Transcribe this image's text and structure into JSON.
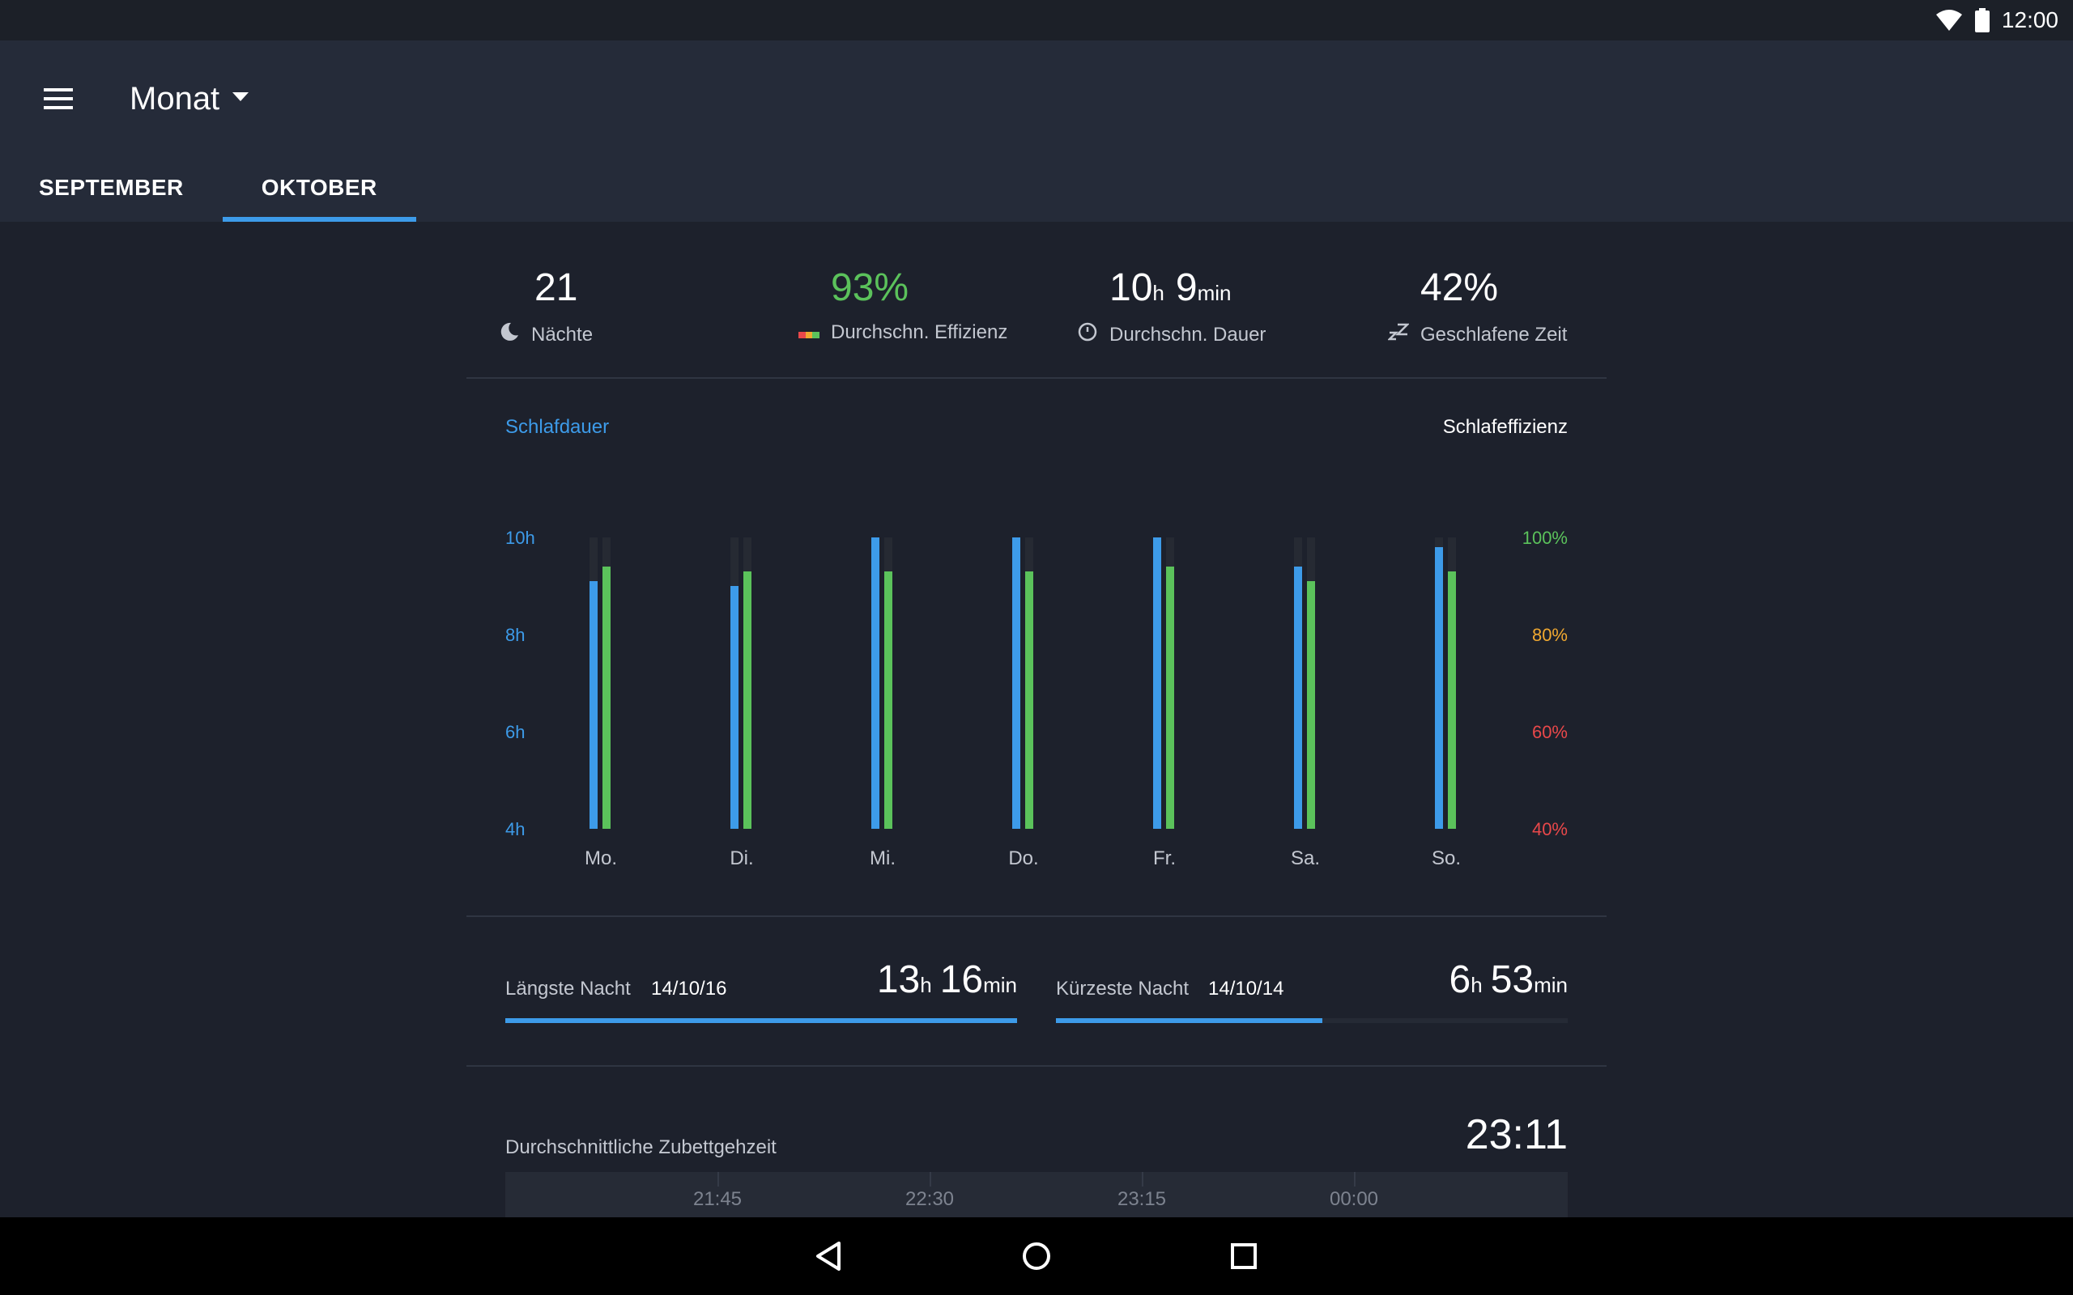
{
  "status_bar": {
    "time": "12:00",
    "icons": [
      "wifi-icon",
      "battery-icon"
    ]
  },
  "header": {
    "period": "Monat",
    "menu_icon": "hamburger-menu-icon",
    "dropdown_icon": "arrow-drop-down-icon"
  },
  "tabs": [
    {
      "label": "SEPTEMBER",
      "active": false
    },
    {
      "label": "OKTOBER",
      "active": true
    }
  ],
  "stats": [
    {
      "value": "21",
      "label": "Nächte",
      "icon": "moon-icon"
    },
    {
      "value": "93%",
      "label": "Durchschn. Effizienz",
      "icon": "efficiency-bar-icon"
    },
    {
      "value_h": "10",
      "unit_h": "h",
      "value_m": "9",
      "unit_m": "min",
      "label": "Durchschn. Dauer",
      "icon": "clock-icon"
    },
    {
      "value": "42%",
      "label": "Geschlafene Zeit",
      "icon": "sleep-zz-icon"
    }
  ],
  "chart_legend": {
    "left": "Schlafdauer",
    "right": "Schlafeffizienz"
  },
  "chart_data": {
    "type": "bar",
    "categories": [
      "Mo.",
      "Di.",
      "Mi.",
      "Do.",
      "Fr.",
      "Sa.",
      "So."
    ],
    "series": [
      {
        "values": [
          9.1,
          9.0,
          10.0,
          10.0,
          10.0,
          9.4,
          9.8
        ],
        "color": "#3d9be9",
        "axis": "left"
      },
      {
        "values": [
          94,
          93,
          93,
          93,
          94,
          91,
          93
        ],
        "color": "#5bc25b",
        "axis": "right"
      }
    ],
    "y_left": {
      "ticks": [
        "10h",
        "8h",
        "6h",
        "4h"
      ],
      "range": [
        4,
        10
      ],
      "color": "#3d9be9"
    },
    "y_right": {
      "ticks": [
        "100%",
        "80%",
        "60%",
        "40%"
      ],
      "range": [
        40,
        100
      ],
      "tick_colors": [
        "#5bc25b",
        "#f0a830",
        "#e9484a",
        "#e9484a"
      ]
    },
    "grid": false
  },
  "nights": [
    {
      "label": "Längste Nacht",
      "date": "14/10/16",
      "h": "13",
      "h_unit": "h",
      "m": "16",
      "m_unit": "min",
      "fill": 1.0
    },
    {
      "label": "Kürzeste Nacht",
      "date": "14/10/14",
      "h": "6",
      "h_unit": "h",
      "m": "53",
      "m_unit": "min",
      "fill": 0.52
    }
  ],
  "bedtime": {
    "label": "Durchschnittliche Zubettgehzeit",
    "value": "23:11",
    "ticks": [
      "21:45",
      "22:30",
      "23:15",
      "00:00"
    ]
  },
  "nav": {
    "back": "back-icon",
    "home": "home-icon",
    "recents": "recents-icon"
  }
}
